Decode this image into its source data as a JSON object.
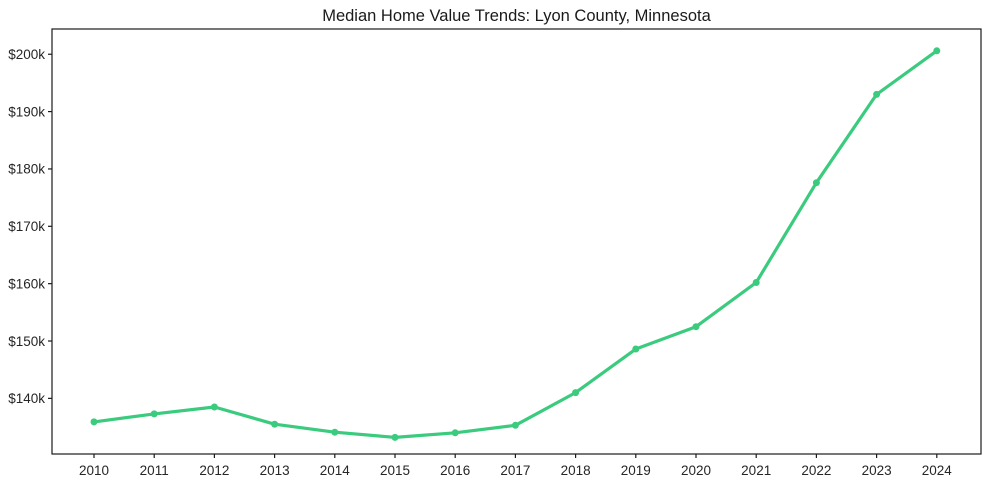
{
  "figure": {
    "background_color": "#ffffff",
    "title": "Median Home Value Trends: Lyon County, Minnesota"
  },
  "chart_data": {
    "type": "line",
    "title": "Median Home Value Trends: Lyon County, Minnesota",
    "xlabel": "",
    "ylabel": "",
    "unit": "USD thousands",
    "x": [
      2010,
      2011,
      2012,
      2013,
      2014,
      2015,
      2016,
      2017,
      2018,
      2019,
      2020,
      2021,
      2022,
      2023,
      2024
    ],
    "x_tick_labels": [
      "2010",
      "2011",
      "2012",
      "2013",
      "2014",
      "2015",
      "2016",
      "2017",
      "2018",
      "2019",
      "2020",
      "2021",
      "2022",
      "2023",
      "2024"
    ],
    "series": [
      {
        "name": "Median home value",
        "values": [
          135.9,
          137.3,
          138.5,
          135.5,
          134.1,
          133.2,
          134.0,
          135.3,
          141.0,
          148.6,
          152.5,
          160.2,
          177.6,
          193.0,
          200.6
        ],
        "color": "#3bcb7e",
        "marker": "circle",
        "line_width": 3.2,
        "marker_radius": 3.5
      }
    ],
    "ylim": [
      130.3,
      204.4
    ],
    "y_ticks": [
      140,
      150,
      160,
      170,
      180,
      190,
      200
    ],
    "y_tick_labels": [
      "$140k",
      "$150k",
      "$160k",
      "$170k",
      "$180k",
      "$190k",
      "$200k"
    ],
    "grid": false,
    "legend_position": "none",
    "axes": {
      "spine_color": "#1a1a1a",
      "tick_color": "#1a1a1a",
      "tick_label_color": "#262626",
      "title_color": "#1a1a1a"
    }
  }
}
